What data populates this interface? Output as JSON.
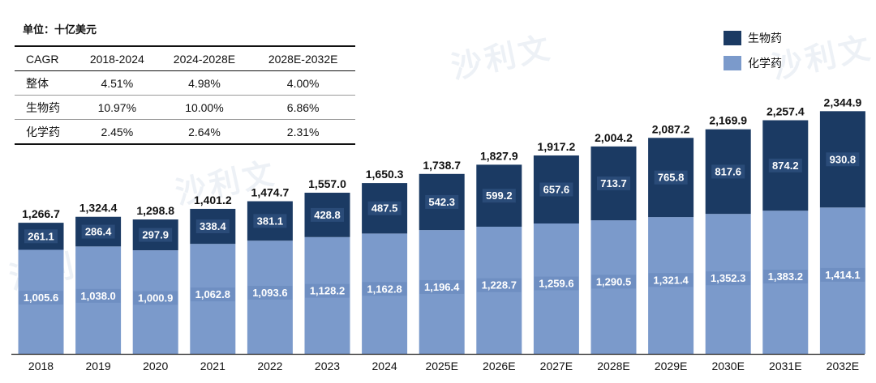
{
  "unit_label": "单位：十亿美元",
  "cagr_table": {
    "headers": [
      "CAGR",
      "2018-2024",
      "2024-2028E",
      "2028E-2032E"
    ],
    "rows": [
      [
        "整体",
        "4.51%",
        "4.98%",
        "4.00%"
      ],
      [
        "生物药",
        "10.97%",
        "10.00%",
        "6.86%"
      ],
      [
        "化学药",
        "2.45%",
        "2.64%",
        "2.31%"
      ]
    ]
  },
  "legend": [
    {
      "label": "生物药",
      "color": "#1b3a63"
    },
    {
      "label": "化学药",
      "color": "#7b9acb"
    }
  ],
  "watermark": "沙利文",
  "chart_data": {
    "type": "bar",
    "stacked": true,
    "categories": [
      "2018",
      "2019",
      "2020",
      "2021",
      "2022",
      "2023",
      "2024",
      "2025E",
      "2026E",
      "2027E",
      "2028E",
      "2029E",
      "2030E",
      "2031E",
      "2032E"
    ],
    "series": [
      {
        "name": "化学药",
        "color": "#7b9acb",
        "values": [
          1005.6,
          1038.0,
          1000.9,
          1062.8,
          1093.6,
          1128.2,
          1162.8,
          1196.4,
          1228.7,
          1259.6,
          1290.5,
          1321.4,
          1352.3,
          1383.2,
          1414.1
        ],
        "labels": [
          "1,005.6",
          "1,038.0",
          "1,000.9",
          "1,062.8",
          "1,093.6",
          "1,128.2",
          "1,162.8",
          "1,196.4",
          "1,228.7",
          "1,259.6",
          "1,290.5",
          "1,321.4",
          "1,352.3",
          "1,383.2",
          "1,414.1"
        ]
      },
      {
        "name": "生物药",
        "color": "#1b3a63",
        "values": [
          261.1,
          286.4,
          297.9,
          338.4,
          381.1,
          428.8,
          487.5,
          542.3,
          599.2,
          657.6,
          713.7,
          765.8,
          817.6,
          874.2,
          930.8
        ],
        "labels": [
          "261.1",
          "286.4",
          "297.9",
          "338.4",
          "381.1",
          "428.8",
          "487.5",
          "542.3",
          "599.2",
          "657.6",
          "713.7",
          "765.8",
          "817.6",
          "874.2",
          "930.8"
        ]
      }
    ],
    "totals": [
      1266.7,
      1324.4,
      1298.8,
      1401.2,
      1474.7,
      1557.0,
      1650.3,
      1738.7,
      1827.9,
      1917.2,
      2004.2,
      2087.2,
      2169.9,
      2257.4,
      2344.9
    ],
    "total_labels": [
      "1,266.7",
      "1,324.4",
      "1,298.8",
      "1,401.2",
      "1,474.7",
      "1,557.0",
      "1,650.3",
      "1,738.7",
      "1,827.9",
      "1,917.2",
      "2,004.2",
      "2,087.2",
      "2,169.9",
      "2,257.4",
      "2,344.9"
    ],
    "legend_position": "top-right",
    "grid": false
  }
}
